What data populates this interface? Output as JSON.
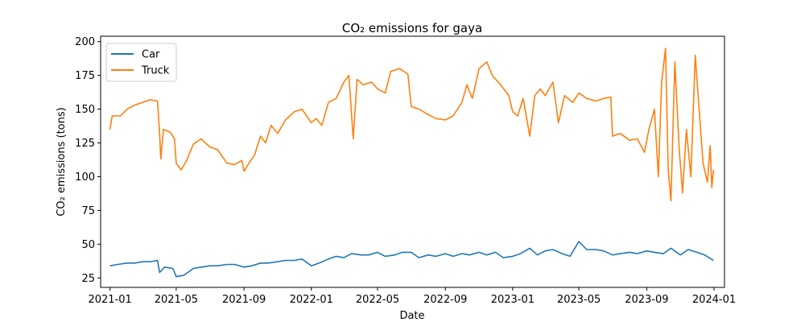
{
  "chart_data": {
    "type": "line",
    "title": "CO₂ emissions for gaya",
    "xlabel": "Date",
    "ylabel": "CO₂ emissions (tons)",
    "xlim": [
      "2020-12-15",
      "2024-01-20"
    ],
    "ylim": [
      18,
      204
    ],
    "x_ticks": [
      {
        "date": "2021-01-01",
        "label": "2021-01"
      },
      {
        "date": "2021-05-01",
        "label": "2021-05"
      },
      {
        "date": "2021-09-01",
        "label": "2021-09"
      },
      {
        "date": "2022-01-01",
        "label": "2022-01"
      },
      {
        "date": "2022-05-01",
        "label": "2022-05"
      },
      {
        "date": "2022-09-01",
        "label": "2022-09"
      },
      {
        "date": "2023-01-01",
        "label": "2023-01"
      },
      {
        "date": "2023-05-01",
        "label": "2023-05"
      },
      {
        "date": "2023-09-01",
        "label": "2023-09"
      },
      {
        "date": "2024-01-01",
        "label": "2024-01"
      }
    ],
    "y_ticks": [
      25,
      50,
      75,
      100,
      125,
      150,
      175,
      200
    ],
    "grid": false,
    "legend_position": "upper-left",
    "series": [
      {
        "name": "Car",
        "color": "#1f77b4",
        "points": [
          [
            "2021-01-01",
            34
          ],
          [
            "2021-01-15",
            35
          ],
          [
            "2021-02-01",
            36
          ],
          [
            "2021-02-15",
            36
          ],
          [
            "2021-03-01",
            37
          ],
          [
            "2021-03-15",
            37
          ],
          [
            "2021-03-28",
            38
          ],
          [
            "2021-04-01",
            29
          ],
          [
            "2021-04-10",
            33
          ],
          [
            "2021-04-25",
            32
          ],
          [
            "2021-05-01",
            26
          ],
          [
            "2021-05-15",
            27
          ],
          [
            "2021-06-01",
            32
          ],
          [
            "2021-06-15",
            33
          ],
          [
            "2021-07-01",
            34
          ],
          [
            "2021-07-15",
            34
          ],
          [
            "2021-08-01",
            35
          ],
          [
            "2021-08-15",
            35
          ],
          [
            "2021-09-01",
            33
          ],
          [
            "2021-09-15",
            34
          ],
          [
            "2021-10-01",
            36
          ],
          [
            "2021-10-15",
            36
          ],
          [
            "2021-11-01",
            37
          ],
          [
            "2021-11-15",
            38
          ],
          [
            "2021-12-01",
            38
          ],
          [
            "2021-12-15",
            39
          ],
          [
            "2022-01-01",
            34
          ],
          [
            "2022-01-15",
            36
          ],
          [
            "2022-02-01",
            39
          ],
          [
            "2022-02-15",
            41
          ],
          [
            "2022-03-01",
            40
          ],
          [
            "2022-03-15",
            43
          ],
          [
            "2022-04-01",
            42
          ],
          [
            "2022-04-15",
            42
          ],
          [
            "2022-05-01",
            44
          ],
          [
            "2022-05-15",
            41
          ],
          [
            "2022-06-01",
            42
          ],
          [
            "2022-06-15",
            44
          ],
          [
            "2022-07-01",
            44
          ],
          [
            "2022-07-15",
            40
          ],
          [
            "2022-08-01",
            42
          ],
          [
            "2022-08-15",
            41
          ],
          [
            "2022-09-01",
            43
          ],
          [
            "2022-09-15",
            41
          ],
          [
            "2022-10-01",
            43
          ],
          [
            "2022-10-15",
            42
          ],
          [
            "2022-11-01",
            44
          ],
          [
            "2022-11-15",
            42
          ],
          [
            "2022-12-01",
            44
          ],
          [
            "2022-12-15",
            40
          ],
          [
            "2023-01-01",
            41
          ],
          [
            "2023-01-15",
            43
          ],
          [
            "2023-02-01",
            47
          ],
          [
            "2023-02-15",
            42
          ],
          [
            "2023-03-01",
            45
          ],
          [
            "2023-03-15",
            46
          ],
          [
            "2023-04-01",
            43
          ],
          [
            "2023-04-15",
            41
          ],
          [
            "2023-05-01",
            52
          ],
          [
            "2023-05-15",
            46
          ],
          [
            "2023-06-01",
            46
          ],
          [
            "2023-06-15",
            45
          ],
          [
            "2023-07-01",
            42
          ],
          [
            "2023-07-15",
            43
          ],
          [
            "2023-08-01",
            44
          ],
          [
            "2023-08-15",
            43
          ],
          [
            "2023-09-01",
            45
          ],
          [
            "2023-09-15",
            44
          ],
          [
            "2023-10-01",
            43
          ],
          [
            "2023-10-15",
            47
          ],
          [
            "2023-11-01",
            42
          ],
          [
            "2023-11-15",
            46
          ],
          [
            "2023-12-01",
            44
          ],
          [
            "2023-12-15",
            42
          ],
          [
            "2023-12-31",
            38
          ]
        ]
      },
      {
        "name": "Truck",
        "color": "#ff7f0e",
        "points": [
          [
            "2021-01-01",
            135
          ],
          [
            "2021-01-05",
            145
          ],
          [
            "2021-01-20",
            145
          ],
          [
            "2021-02-01",
            150
          ],
          [
            "2021-02-15",
            153
          ],
          [
            "2021-03-01",
            155
          ],
          [
            "2021-03-15",
            157
          ],
          [
            "2021-03-28",
            156
          ],
          [
            "2021-04-01",
            132
          ],
          [
            "2021-04-03",
            113
          ],
          [
            "2021-04-08",
            135
          ],
          [
            "2021-04-20",
            133
          ],
          [
            "2021-04-28",
            128
          ],
          [
            "2021-05-01",
            110
          ],
          [
            "2021-05-10",
            105
          ],
          [
            "2021-05-20",
            112
          ],
          [
            "2021-06-01",
            124
          ],
          [
            "2021-06-15",
            128
          ],
          [
            "2021-07-01",
            122
          ],
          [
            "2021-07-15",
            120
          ],
          [
            "2021-08-01",
            110
          ],
          [
            "2021-08-15",
            109
          ],
          [
            "2021-08-28",
            112
          ],
          [
            "2021-09-01",
            104
          ],
          [
            "2021-09-10",
            110
          ],
          [
            "2021-09-20",
            116
          ],
          [
            "2021-10-01",
            130
          ],
          [
            "2021-10-10",
            125
          ],
          [
            "2021-10-20",
            138
          ],
          [
            "2021-11-01",
            132
          ],
          [
            "2021-11-15",
            142
          ],
          [
            "2021-12-01",
            148
          ],
          [
            "2021-12-15",
            150
          ],
          [
            "2022-01-01",
            140
          ],
          [
            "2022-01-10",
            143
          ],
          [
            "2022-01-20",
            138
          ],
          [
            "2022-02-01",
            155
          ],
          [
            "2022-02-15",
            158
          ],
          [
            "2022-03-01",
            170
          ],
          [
            "2022-03-10",
            175
          ],
          [
            "2022-03-18",
            128
          ],
          [
            "2022-03-25",
            172
          ],
          [
            "2022-04-05",
            168
          ],
          [
            "2022-04-20",
            170
          ],
          [
            "2022-05-01",
            165
          ],
          [
            "2022-05-15",
            162
          ],
          [
            "2022-05-25",
            178
          ],
          [
            "2022-06-10",
            180
          ],
          [
            "2022-06-25",
            176
          ],
          [
            "2022-07-01",
            152
          ],
          [
            "2022-07-15",
            150
          ],
          [
            "2022-08-01",
            146
          ],
          [
            "2022-08-15",
            143
          ],
          [
            "2022-09-01",
            142
          ],
          [
            "2022-09-15",
            145
          ],
          [
            "2022-10-01",
            155
          ],
          [
            "2022-10-10",
            168
          ],
          [
            "2022-10-20",
            158
          ],
          [
            "2022-11-01",
            180
          ],
          [
            "2022-11-15",
            185
          ],
          [
            "2022-11-25",
            175
          ],
          [
            "2022-12-10",
            168
          ],
          [
            "2022-12-25",
            160
          ],
          [
            "2023-01-01",
            148
          ],
          [
            "2023-01-10",
            145
          ],
          [
            "2023-01-20",
            158
          ],
          [
            "2023-02-01",
            130
          ],
          [
            "2023-02-10",
            160
          ],
          [
            "2023-02-20",
            165
          ],
          [
            "2023-03-01",
            160
          ],
          [
            "2023-03-15",
            170
          ],
          [
            "2023-03-25",
            140
          ],
          [
            "2023-04-05",
            160
          ],
          [
            "2023-04-20",
            155
          ],
          [
            "2023-05-01",
            162
          ],
          [
            "2023-05-15",
            158
          ],
          [
            "2023-06-01",
            156
          ],
          [
            "2023-06-15",
            158
          ],
          [
            "2023-06-28",
            159
          ],
          [
            "2023-07-01",
            130
          ],
          [
            "2023-07-15",
            132
          ],
          [
            "2023-08-01",
            127
          ],
          [
            "2023-08-15",
            128
          ],
          [
            "2023-08-28",
            118
          ],
          [
            "2023-09-05",
            135
          ],
          [
            "2023-09-15",
            150
          ],
          [
            "2023-09-22",
            100
          ],
          [
            "2023-09-28",
            170
          ],
          [
            "2023-10-05",
            195
          ],
          [
            "2023-10-10",
            105
          ],
          [
            "2023-10-15",
            82
          ],
          [
            "2023-10-22",
            185
          ],
          [
            "2023-10-30",
            120
          ],
          [
            "2023-11-05",
            88
          ],
          [
            "2023-11-12",
            135
          ],
          [
            "2023-11-20",
            100
          ],
          [
            "2023-11-28",
            190
          ],
          [
            "2023-12-05",
            150
          ],
          [
            "2023-12-12",
            110
          ],
          [
            "2023-12-20",
            96
          ],
          [
            "2023-12-25",
            123
          ],
          [
            "2023-12-28",
            92
          ],
          [
            "2023-12-31",
            105
          ]
        ]
      }
    ]
  }
}
